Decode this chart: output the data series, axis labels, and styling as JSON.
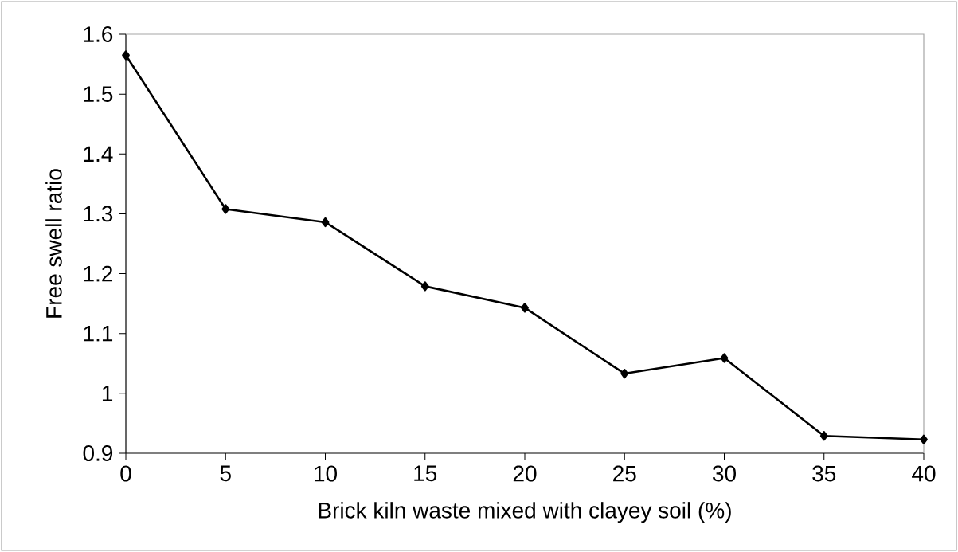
{
  "chart_data": {
    "type": "line",
    "xlabel": "Brick kiln waste mixed with clayey soil (%)",
    "ylabel": "Free swell ratio",
    "x": [
      0,
      5,
      10,
      15,
      20,
      25,
      30,
      35,
      40
    ],
    "values": [
      1.565,
      1.308,
      1.286,
      1.179,
      1.143,
      1.033,
      1.059,
      0.929,
      0.923
    ],
    "color": "#000000",
    "marker": "diamond",
    "line_style": "solid",
    "xlim": [
      0,
      40
    ],
    "xticks": [
      0,
      5,
      10,
      15,
      20,
      25,
      30,
      35,
      40
    ],
    "ylim": [
      0.9,
      1.6
    ],
    "yticks": [
      0.9,
      1,
      1.1,
      1.2,
      1.3,
      1.4,
      1.5,
      1.6
    ],
    "grid": false
  }
}
